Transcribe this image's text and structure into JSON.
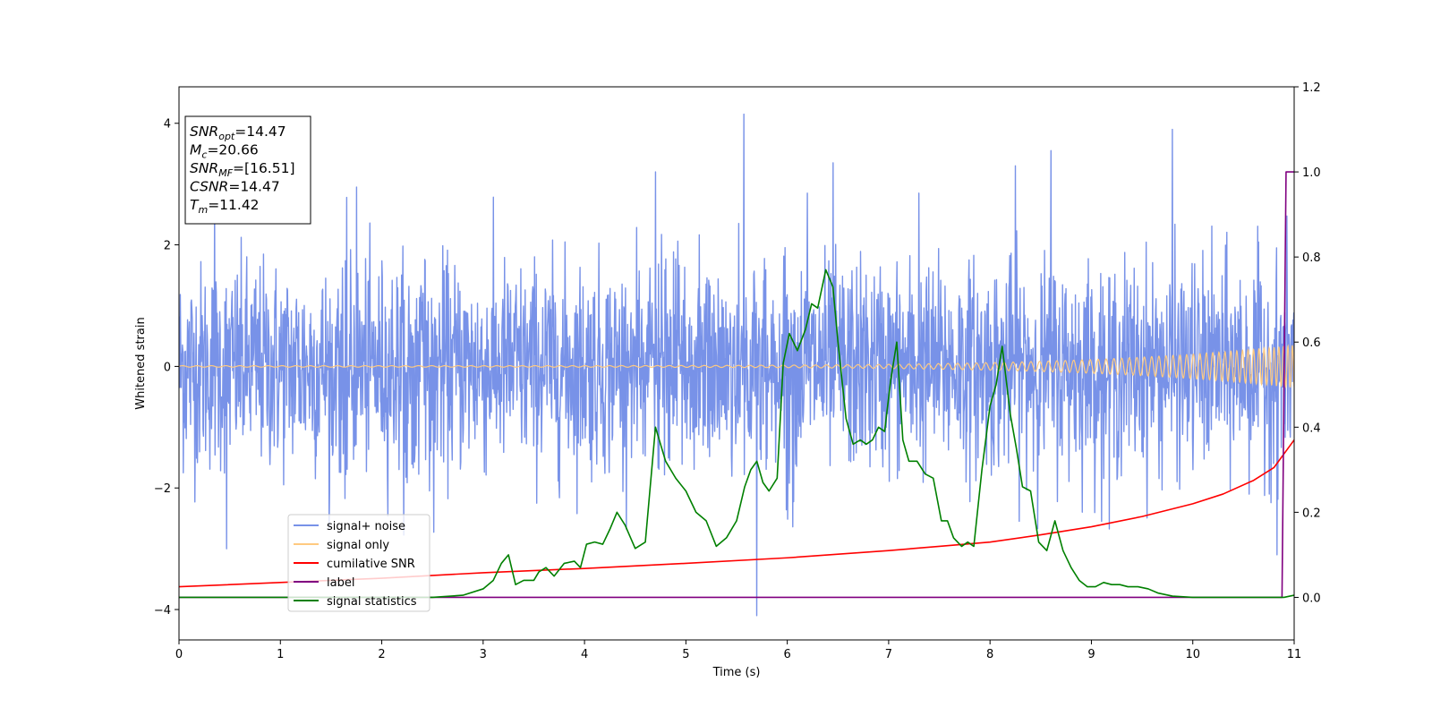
{
  "chart_data": {
    "type": "line",
    "title": "",
    "xlabel": "Time (s)",
    "ylabel": "Whitened strain",
    "ylabel_right": "",
    "xlim": [
      0,
      11
    ],
    "ylim": [
      -4.5,
      4.6
    ],
    "ylim_right": [
      -0.1,
      1.2
    ],
    "xticks": [
      "0",
      "1",
      "2",
      "3",
      "4",
      "5",
      "6",
      "7",
      "8",
      "9",
      "10",
      "11"
    ],
    "yticks": [
      "−4",
      "−2",
      "0",
      "2",
      "4"
    ],
    "yticks_right": [
      "0.0",
      "0.2",
      "0.4",
      "0.6",
      "0.8",
      "1.0",
      "1.2"
    ],
    "grid": false,
    "legend_position": "lower-left",
    "annotation": [
      {
        "var": "SNR",
        "sub": "opt",
        "value": "=14.47"
      },
      {
        "var": "M",
        "sub": "c",
        "value": "=20.66"
      },
      {
        "var": "SNR",
        "sub": "MF",
        "value": "=[16.51]"
      },
      {
        "var": "CSNR",
        "sub": "",
        "value": "=14.47"
      },
      {
        "var": "T",
        "sub": "m",
        "value": "=11.42"
      }
    ],
    "series": [
      {
        "name": "signal+ noise",
        "color": "#7892e8",
        "axis": "left",
        "kind": "noise",
        "envelope_sigma": 0.85,
        "spikes": [
          {
            "x": 0.35,
            "y": 2.9
          },
          {
            "x": 0.47,
            "y": -3.0
          },
          {
            "x": 1.75,
            "y": 2.95
          },
          {
            "x": 4.7,
            "y": 3.2
          },
          {
            "x": 5.57,
            "y": 4.15
          },
          {
            "x": 5.7,
            "y": -4.1
          },
          {
            "x": 6.2,
            "y": 2.85
          },
          {
            "x": 6.45,
            "y": 3.35
          },
          {
            "x": 7.3,
            "y": 2.85
          },
          {
            "x": 8.25,
            "y": 3.3
          },
          {
            "x": 8.6,
            "y": 3.55
          },
          {
            "x": 9.8,
            "y": 3.9
          },
          {
            "x": 10.83,
            "y": -3.1
          }
        ]
      },
      {
        "name": "signal only",
        "color": "#ffca80",
        "axis": "left",
        "kind": "chirp",
        "f_start": 7,
        "amp_start": 0.012,
        "amp_end": 0.35,
        "t_coalesce": 11.42
      },
      {
        "name": "cumilative SNR",
        "color": "#ff0000",
        "axis": "right",
        "x": [
          0,
          1,
          2,
          3,
          4,
          5,
          6,
          7,
          7.5,
          8,
          8.5,
          9,
          9.5,
          10,
          10.3,
          10.6,
          10.8,
          11.0
        ],
        "y": [
          0.025,
          0.035,
          0.045,
          0.058,
          0.068,
          0.08,
          0.093,
          0.11,
          0.12,
          0.13,
          0.147,
          0.166,
          0.19,
          0.22,
          0.243,
          0.275,
          0.305,
          0.37
        ]
      },
      {
        "name": "label",
        "color": "#800080",
        "axis": "right",
        "x": [
          0,
          10.88,
          10.92,
          11.0
        ],
        "y": [
          0.0,
          0.0,
          1.0,
          1.0
        ]
      },
      {
        "name": "signal statistics",
        "color": "#008000",
        "axis": "right",
        "x": [
          0,
          2.5,
          2.8,
          3.0,
          3.1,
          3.18,
          3.25,
          3.32,
          3.4,
          3.5,
          3.55,
          3.62,
          3.7,
          3.8,
          3.9,
          3.96,
          4.02,
          4.1,
          4.18,
          4.25,
          4.32,
          4.4,
          4.5,
          4.6,
          4.7,
          4.8,
          4.9,
          5.0,
          5.1,
          5.2,
          5.3,
          5.4,
          5.5,
          5.58,
          5.64,
          5.7,
          5.76,
          5.82,
          5.9,
          5.96,
          6.02,
          6.1,
          6.18,
          6.24,
          6.3,
          6.38,
          6.45,
          6.5,
          6.58,
          6.65,
          6.72,
          6.78,
          6.84,
          6.9,
          6.96,
          7.02,
          7.08,
          7.14,
          7.2,
          7.28,
          7.36,
          7.44,
          7.52,
          7.58,
          7.64,
          7.72,
          7.78,
          7.84,
          7.92,
          8.0,
          8.06,
          8.12,
          8.2,
          8.26,
          8.32,
          8.4,
          8.48,
          8.56,
          8.64,
          8.72,
          8.8,
          8.88,
          8.96,
          9.04,
          9.12,
          9.2,
          9.28,
          9.36,
          9.46,
          9.56,
          9.66,
          9.8,
          10.0,
          10.5,
          10.9,
          11.0
        ],
        "y": [
          0.0,
          0.0,
          0.005,
          0.02,
          0.04,
          0.08,
          0.1,
          0.03,
          0.04,
          0.04,
          0.06,
          0.07,
          0.05,
          0.08,
          0.085,
          0.07,
          0.125,
          0.13,
          0.125,
          0.16,
          0.2,
          0.17,
          0.115,
          0.13,
          0.4,
          0.32,
          0.28,
          0.25,
          0.2,
          0.18,
          0.12,
          0.14,
          0.18,
          0.26,
          0.3,
          0.32,
          0.27,
          0.25,
          0.28,
          0.55,
          0.62,
          0.58,
          0.63,
          0.69,
          0.68,
          0.77,
          0.73,
          0.6,
          0.42,
          0.36,
          0.37,
          0.36,
          0.37,
          0.4,
          0.39,
          0.51,
          0.6,
          0.37,
          0.32,
          0.32,
          0.29,
          0.28,
          0.18,
          0.18,
          0.14,
          0.12,
          0.13,
          0.12,
          0.3,
          0.45,
          0.5,
          0.59,
          0.43,
          0.35,
          0.26,
          0.25,
          0.13,
          0.11,
          0.18,
          0.11,
          0.07,
          0.04,
          0.025,
          0.025,
          0.035,
          0.03,
          0.03,
          0.025,
          0.025,
          0.02,
          0.01,
          0.003,
          0.0,
          0.0,
          0.0,
          0.005
        ]
      }
    ]
  }
}
